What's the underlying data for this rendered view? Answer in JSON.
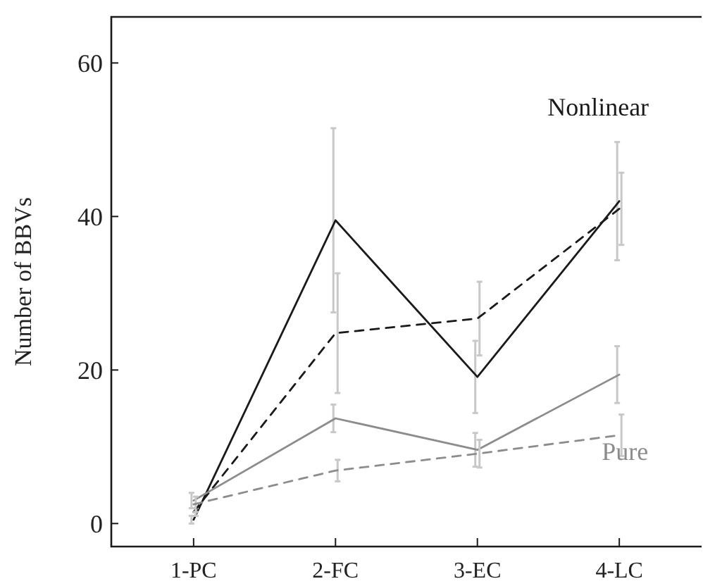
{
  "chart_data": {
    "type": "line",
    "ylabel": "Number of BBVs",
    "categories": [
      "1-PC",
      "2-FC",
      "3-EC",
      "4-LC"
    ],
    "ylim": [
      -3,
      66
    ],
    "yticks": [
      0,
      20,
      40,
      60
    ],
    "marker": "none",
    "grid": false,
    "series": [
      {
        "color": "#1a1a1a",
        "line_style": "solid",
        "values": [
          0.5,
          39.5,
          19.1,
          42
        ],
        "errors": [
          0.5,
          12,
          4.7,
          7.7
        ]
      },
      {
        "color": "#1a1a1a",
        "line_style": "dashed",
        "values": [
          1.5,
          24.8,
          26.7,
          41
        ],
        "errors": [
          0.5,
          7.8,
          4.8,
          4.7
        ]
      },
      {
        "color": "#8c8c8c",
        "line_style": "solid",
        "values": [
          3,
          13.7,
          9.6,
          19.4
        ],
        "errors": [
          1,
          1.8,
          2.2,
          3.7
        ]
      },
      {
        "color": "#8c8c8c",
        "line_style": "dashed",
        "values": [
          2.5,
          6.9,
          9.1,
          11.5
        ],
        "errors": [
          1,
          1.4,
          1.8,
          2.7
        ]
      }
    ],
    "annotations": [
      "Nonlinear",
      "Pure"
    ]
  }
}
